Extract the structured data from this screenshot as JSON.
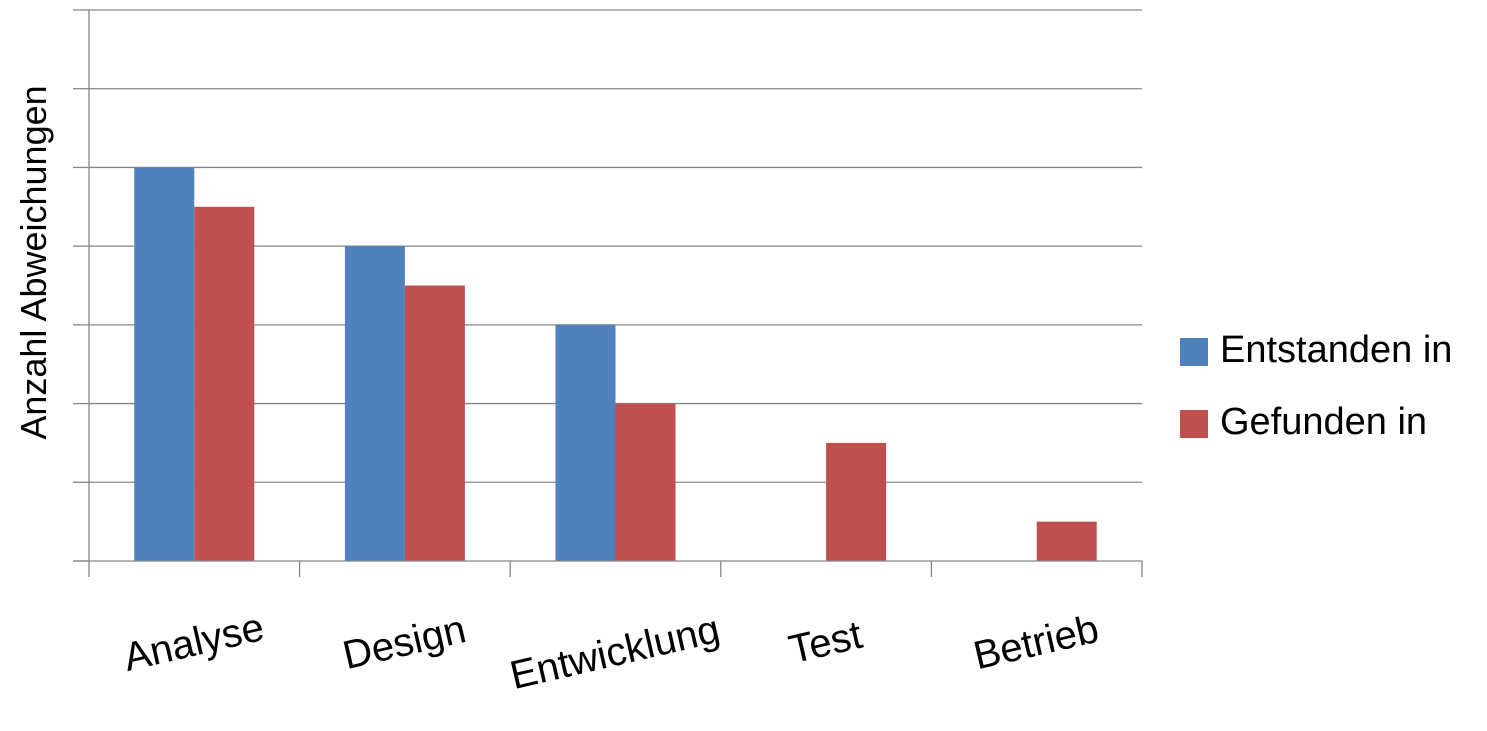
{
  "chart_data": {
    "type": "bar",
    "categories": [
      "Analyse",
      "Design",
      "Entwicklung",
      "Test",
      "Betrieb"
    ],
    "series": [
      {
        "name": "Entstanden in",
        "color": "#4F81BD",
        "values": [
          5,
          4,
          3,
          0,
          0
        ]
      },
      {
        "name": "Gefunden in",
        "color": "#C0504D",
        "values": [
          4.5,
          3.5,
          2,
          1.5,
          0.5
        ]
      }
    ],
    "title": "",
    "xlabel": "",
    "ylabel": "Anzahl Abweichungen",
    "ylim": [
      0,
      7
    ],
    "grid": true,
    "legend": "right"
  }
}
